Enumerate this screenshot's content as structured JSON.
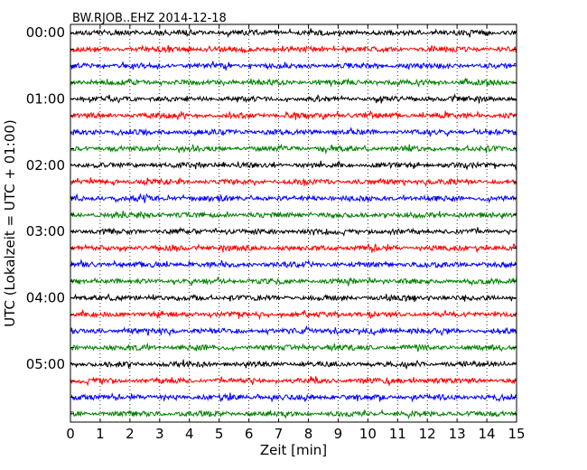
{
  "chart_data": {
    "type": "line",
    "title": "BW.RJOB..EHZ 2014-12-18",
    "xlabel": "Zeit  [min]",
    "ylabel": "UTC (Lokalzeit = UTC + 01:00)",
    "xlim": [
      0,
      15
    ],
    "x_ticks": [
      0,
      1,
      2,
      3,
      4,
      5,
      6,
      7,
      8,
      9,
      10,
      11,
      12,
      13,
      14,
      15
    ],
    "y_ticks": [
      "00:00",
      "01:00",
      "02:00",
      "03:00",
      "04:00",
      "05:00"
    ],
    "grid": "vertical dotted",
    "trace_interval_minutes": 15,
    "trace_count": 24,
    "trace_colors": [
      "#000000",
      "#ff0000",
      "#0000ff",
      "#008000"
    ]
  }
}
